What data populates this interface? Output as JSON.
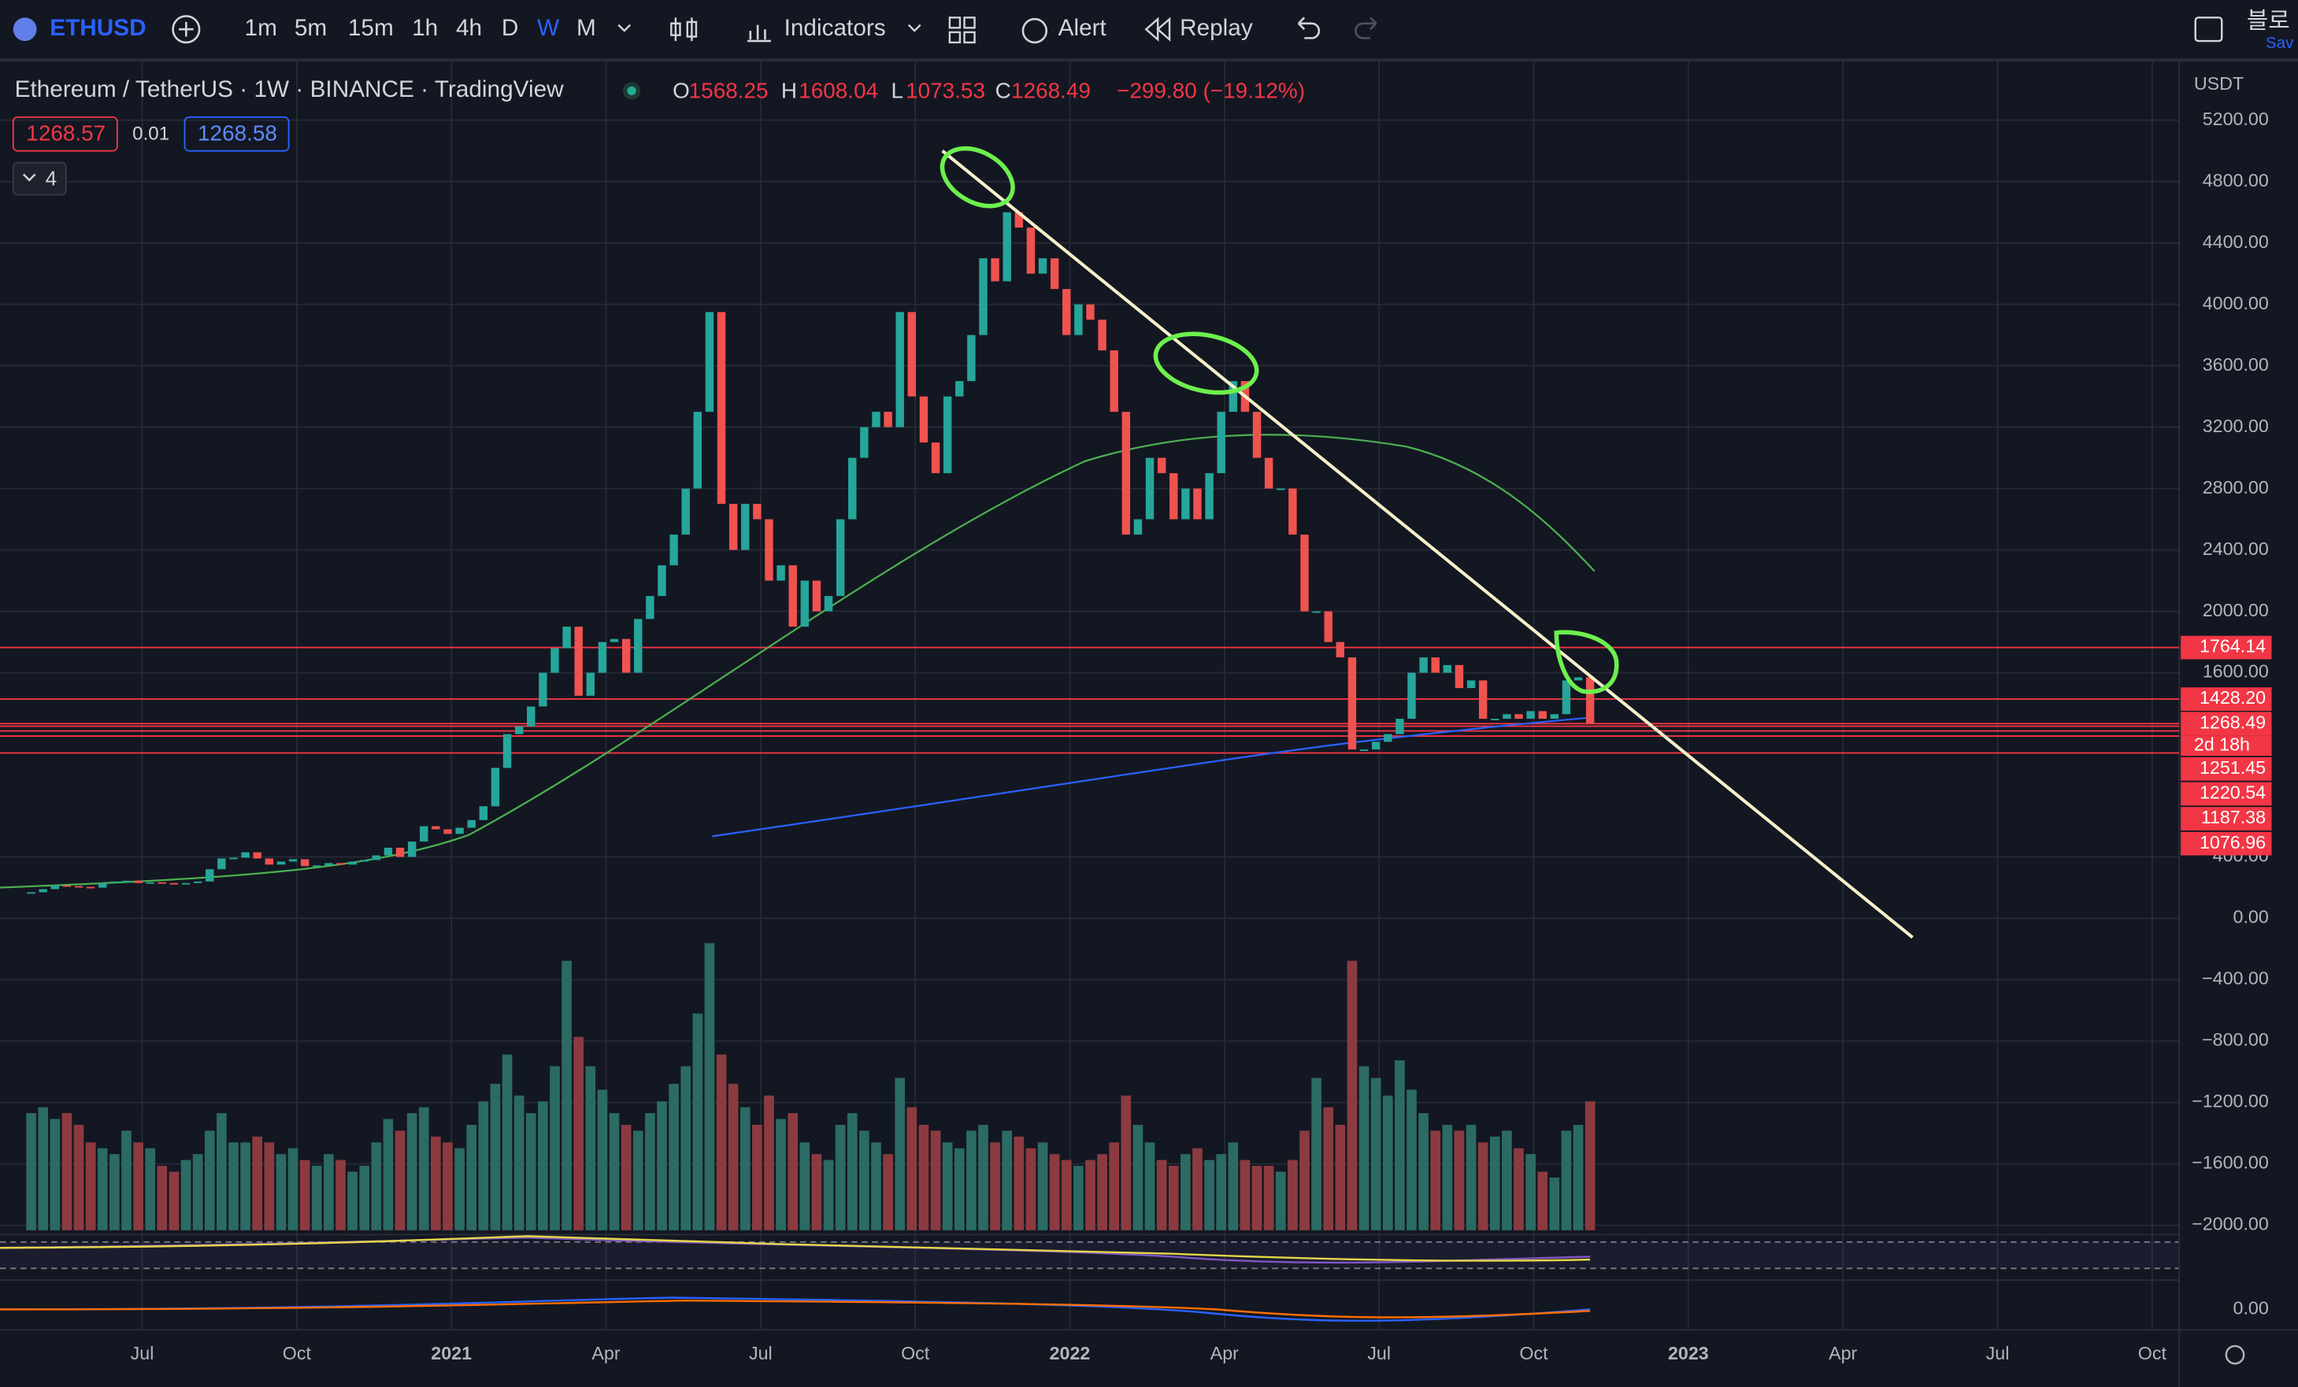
{
  "toolbar": {
    "symbol": "ETHUSD",
    "intervals": [
      "1m",
      "5m",
      "15m",
      "1h",
      "4h",
      "D",
      "W",
      "M"
    ],
    "indicators": "Indicators",
    "alert": "Alert",
    "replay": "Replay",
    "corner_text": "블로",
    "corner_sub": "Sav"
  },
  "legend": {
    "title": "Ethereum / TetherUS · 1W · BINANCE · TradingView",
    "o_label": "O",
    "open": "1568.25",
    "h_label": "H",
    "high": "1608.04",
    "l_label": "L",
    "low": "1073.53",
    "c_label": "C",
    "close": "1268.49",
    "change": "−299.80 (−19.12%)",
    "bid": "1268.57",
    "spread": "0.01",
    "ask": "1268.58",
    "indicator_count": "4"
  },
  "price_axis": {
    "currency": "USDT",
    "ticks": [
      {
        "value": 5200,
        "label": "5200.00"
      },
      {
        "value": 4800,
        "label": "4800.00"
      },
      {
        "value": 4400,
        "label": "4400.00"
      },
      {
        "value": 4000,
        "label": "4000.00"
      },
      {
        "value": 3600,
        "label": "3600.00"
      },
      {
        "value": 3200,
        "label": "3200.00"
      },
      {
        "value": 2800,
        "label": "2800.00"
      },
      {
        "value": 2400,
        "label": "2400.00"
      },
      {
        "value": 2000,
        "label": "2000.00"
      },
      {
        "value": 1600,
        "label": "1600.00"
      },
      {
        "value": 400,
        "label": "400.00"
      },
      {
        "value": 0,
        "label": "0.00"
      },
      {
        "value": -400,
        "label": "−400.00"
      },
      {
        "value": -800,
        "label": "−800.00"
      },
      {
        "value": -1200,
        "label": "−1200.00"
      },
      {
        "value": -1600,
        "label": "−1600.00"
      },
      {
        "value": -2000,
        "label": "−2000.00"
      }
    ],
    "macd_zero": "0.00"
  },
  "price_tags": [
    1764.14,
    {
      "value": 1428.2,
      "label": "1428.20"
    },
    1268.49,
    1251.45,
    1220.54,
    1187.38,
    1076.96
  ],
  "countdown": "2d 18h",
  "time_axis": [
    "Jul",
    "Oct",
    "2021",
    "Apr",
    "Jul",
    "Oct",
    "2022",
    "Apr",
    "Jul",
    "Oct",
    "2023",
    "Apr",
    "Jul",
    "Oct"
  ],
  "candles": {
    "closes": [
      170,
      190,
      215,
      210,
      205,
      200,
      230,
      240,
      245,
      230,
      235,
      230,
      225,
      230,
      240,
      320,
      390,
      395,
      430,
      390,
      350,
      370,
      385,
      340,
      345,
      360,
      350,
      370,
      380,
      410,
      460,
      400,
      500,
      600,
      580,
      550,
      590,
      640,
      730,
      980,
      1200,
      1250,
      1380,
      1600,
      1760,
      1900,
      1450,
      1600,
      1800,
      1820,
      1600,
      1950,
      2100,
      2300,
      2500,
      2800,
      3300,
      3950,
      2700,
      2400,
      2700,
      2600,
      2200,
      2300,
      1900,
      2200,
      2000,
      2100,
      2600,
      3000,
      3200,
      3300,
      3200,
      3950,
      3400,
      3100,
      2900,
      3400,
      3500,
      3800,
      4300,
      4150,
      4600,
      4500,
      4200,
      4300,
      4100,
      3800,
      4000,
      3900,
      3700,
      3300,
      2500,
      2600,
      3000,
      2900,
      2600,
      2800,
      2600,
      2900,
      3300,
      3500,
      3300,
      3000,
      2800,
      2800,
      2500,
      2000,
      2000,
      1800,
      1700,
      1100,
      1100,
      1150,
      1200,
      1300,
      1600,
      1700,
      1600,
      1650,
      1500,
      1550,
      1300,
      1300,
      1330,
      1300,
      1350,
      1300,
      1330,
      1550,
      1570,
      1268.49
    ],
    "volumes": [
      40,
      42,
      38,
      40,
      36,
      30,
      28,
      26,
      34,
      30,
      28,
      22,
      20,
      24,
      26,
      34,
      40,
      30,
      30,
      32,
      30,
      26,
      28,
      24,
      22,
      26,
      24,
      20,
      22,
      30,
      38,
      34,
      40,
      42,
      32,
      30,
      28,
      36,
      44,
      50,
      60,
      46,
      40,
      44,
      56,
      92,
      66,
      56,
      48,
      40,
      36,
      34,
      40,
      44,
      50,
      56,
      74,
      98,
      60,
      50,
      42,
      36,
      46,
      38,
      40,
      30,
      26,
      24,
      36,
      40,
      34,
      30,
      26,
      52,
      42,
      36,
      34,
      30,
      28,
      34,
      36,
      30,
      34,
      32,
      28,
      30,
      26,
      24,
      22,
      24,
      26,
      30,
      46,
      36,
      30,
      24,
      22,
      26,
      28,
      24,
      26,
      30,
      24,
      22,
      22,
      20,
      24,
      34,
      52,
      42,
      36,
      92,
      56,
      52,
      46,
      58,
      48,
      40,
      34,
      36,
      34,
      36,
      30,
      32,
      34,
      28,
      26,
      20,
      18,
      34,
      36,
      44
    ]
  }
}
